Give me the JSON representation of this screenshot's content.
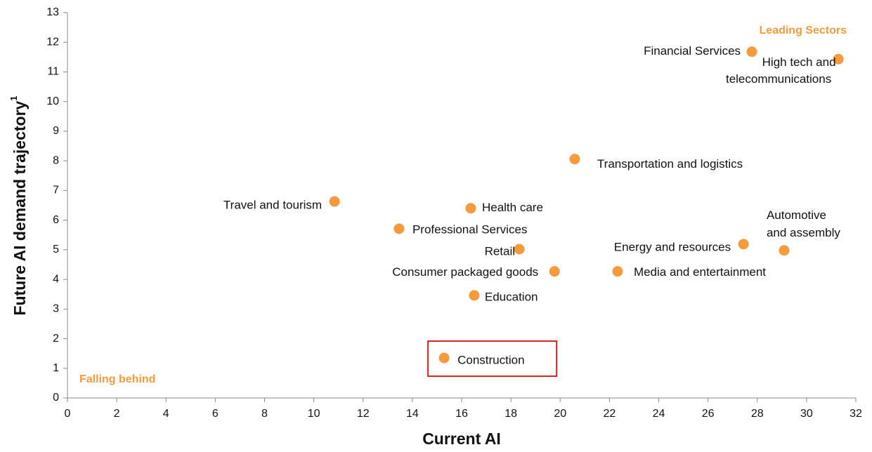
{
  "chart_data": {
    "type": "scatter",
    "x_label": "Current AI",
    "y_label": "Future AI demand trajectory",
    "y_label_sup": "1",
    "annotations": [
      "Leading Sectors",
      "Falling behind"
    ],
    "color": "#f59b3b",
    "labels": [
      [
        "Travel and tourism"
      ],
      [
        "Professional Services"
      ],
      [
        "Health care"
      ],
      [
        "Retail"
      ],
      [
        "Consumer packaged goods"
      ],
      [
        "Education"
      ],
      [
        "Construction"
      ],
      [
        "Transportation and logistics"
      ],
      [
        "Media and entertainment"
      ],
      [
        "Energy and resources"
      ],
      [
        "Automotive",
        "and assembly"
      ],
      [
        "Financial Services"
      ],
      [
        "High tech and",
        "telecommunications"
      ]
    ],
    "x": [
      10.84,
      13.46,
      16.37,
      18.34,
      19.77,
      16.51,
      15.29,
      20.59,
      22.33,
      27.44,
      29.09,
      27.78,
      31.29
    ],
    "values": [
      6.63,
      5.71,
      6.4,
      5.02,
      4.27,
      3.46,
      1.35,
      8.06,
      4.27,
      5.19,
      4.98,
      11.68,
      11.43
    ],
    "xlim": [
      0,
      32
    ],
    "xticks": [
      0,
      2,
      4,
      6,
      8,
      10,
      12,
      14,
      16,
      18,
      20,
      22,
      24,
      26,
      28,
      30,
      32
    ],
    "ylim": [
      0,
      13
    ],
    "yticks": [
      0,
      1,
      2,
      3,
      4,
      5,
      6,
      7,
      8,
      9,
      10,
      11,
      12,
      13
    ],
    "grid": false
  }
}
